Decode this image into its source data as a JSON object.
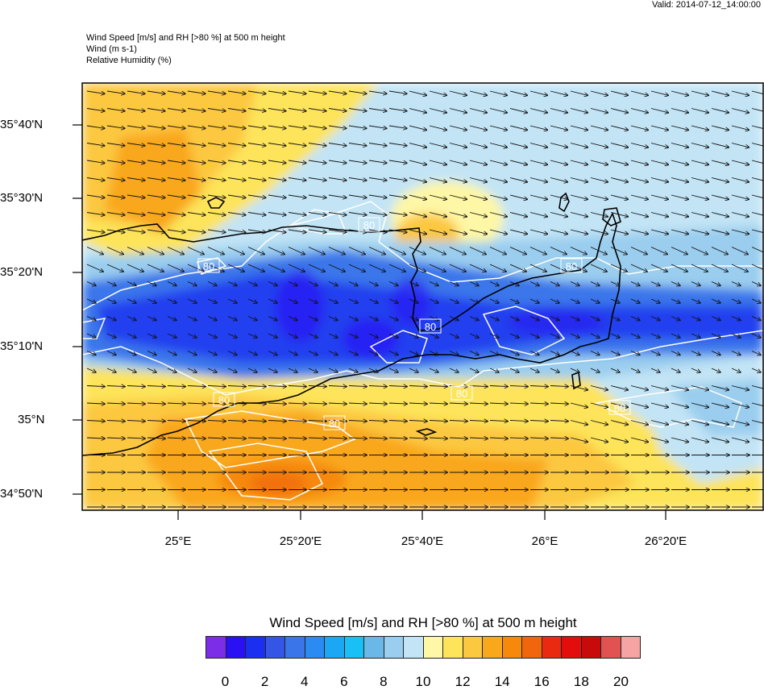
{
  "header": {
    "valid": "Valid: 2014-07-12_14:00:00",
    "line1": "Wind Speed [m/s] and RH [>80 %] at 500 m height",
    "line2": "Wind   (m s-1)",
    "line3": "Relative Humidity   (%)"
  },
  "map": {
    "lat_labels": [
      "35°40'N",
      "35°30'N",
      "35°20'N",
      "35°10'N",
      "35°N",
      "34°50'N"
    ],
    "lon_labels": [
      "25°E",
      "25°20'E",
      "25°40'E",
      "26°E",
      "26°20'E"
    ],
    "contour_label": "80",
    "colors": {
      "coast": "#000000",
      "rh_contour": "#ffffff",
      "arrow": "#111111"
    }
  },
  "legend": {
    "title": "Wind Speed [m/s] and RH [>80 %] at 500 m height",
    "ticks": [
      "0",
      "2",
      "4",
      "6",
      "8",
      "10",
      "12",
      "14",
      "16",
      "18",
      "20"
    ],
    "colors": [
      "#7b2de8",
      "#2a10f5",
      "#1a2ff0",
      "#3555e6",
      "#3a76ea",
      "#2a8cf2",
      "#1aa8f5",
      "#19c0f5",
      "#6ab8e8",
      "#9acdee",
      "#c2e4f5",
      "#fef7a5",
      "#fde45a",
      "#fcc840",
      "#f9a71b",
      "#f6890c",
      "#f1660d",
      "#ea2a10",
      "#e30d0d",
      "#c80a0a",
      "#e15353",
      "#f5a3a3"
    ]
  }
}
